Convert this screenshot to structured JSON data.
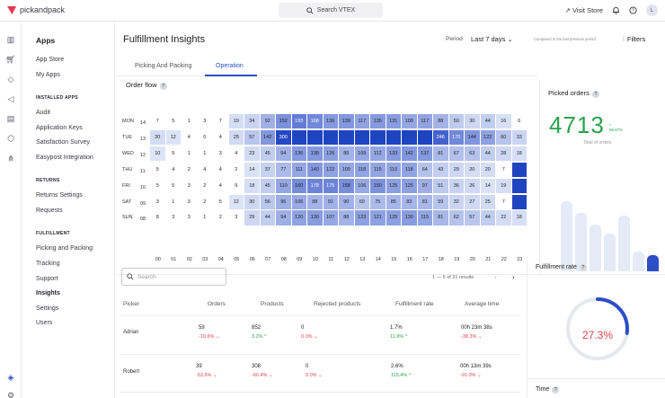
{
  "topbar": {
    "brand": "pickandpack",
    "search_label": "Search VTEX",
    "visit_store": "Visit Store",
    "avatar_initial": "L"
  },
  "sidenav": {
    "title": "Apps",
    "items_top": [
      "App Store",
      "My Apps"
    ],
    "installed_title": "INSTALLED APPS",
    "installed": [
      "Audit",
      "Application Keys",
      "Satisfaction Survey",
      "Easypost Integration"
    ],
    "returns_title": "RETURNS",
    "returns": [
      "Returns Settings",
      "Requests"
    ],
    "fulfillment_title": "FULFILLMENT",
    "fulfillment": [
      "Picking and Packing",
      "Tracking",
      "Support",
      "Insights",
      "Settings",
      "Users"
    ],
    "active_item": "Insights"
  },
  "header": {
    "title": "Fulfillment Insights",
    "period_label": "Period",
    "period_value": "Last 7 days",
    "compared": "Compared to the last previous period",
    "filters": "Filters"
  },
  "tabs": [
    {
      "label": "Picking And Packing",
      "active": false
    },
    {
      "label": "Operation",
      "active": true
    }
  ],
  "order_flow": {
    "title": "Order flow",
    "help": "?",
    "days": [
      {
        "day": "MON",
        "date": "14"
      },
      {
        "day": "TUE",
        "date": "13"
      },
      {
        "day": "WED",
        "date": "12"
      },
      {
        "day": "THU",
        "date": "11"
      },
      {
        "day": "FRI",
        "date": "10"
      },
      {
        "day": "SAT",
        "date": "09"
      },
      {
        "day": "SUN",
        "date": "08"
      }
    ],
    "hours": [
      "00",
      "01",
      "02",
      "03",
      "04",
      "05",
      "06",
      "07",
      "08",
      "09",
      "10",
      "11",
      "12",
      "13",
      "14",
      "15",
      "16",
      "17",
      "18",
      "19",
      "20",
      "21",
      "22",
      "23"
    ],
    "rows": [
      [
        7,
        5,
        1,
        3,
        7,
        19,
        34,
        92,
        152,
        193,
        168,
        136,
        139,
        117,
        135,
        131,
        109,
        117,
        88,
        50,
        30,
        44,
        16,
        6
      ],
      [
        20,
        12,
        4,
        0,
        4,
        25,
        57,
        142,
        300,
        null,
        null,
        null,
        null,
        null,
        null,
        null,
        null,
        null,
        246,
        170,
        144,
        122,
        60,
        33
      ],
      [
        10,
        5,
        1,
        1,
        3,
        4,
        23,
        45,
        94,
        136,
        138,
        126,
        89,
        109,
        112,
        133,
        142,
        137,
        81,
        67,
        63,
        44,
        28,
        18
      ],
      [
        5,
        4,
        2,
        4,
        4,
        2,
        14,
        37,
        77,
        111,
        140,
        122,
        109,
        118,
        115,
        110,
        118,
        64,
        43,
        29,
        20,
        20,
        7,
        null
      ],
      [
        5,
        5,
        3,
        2,
        4,
        9,
        18,
        45,
        110,
        160,
        178,
        175,
        158,
        106,
        150,
        125,
        125,
        97,
        51,
        36,
        26,
        14,
        19,
        null
      ],
      [
        3,
        1,
        3,
        2,
        5,
        12,
        30,
        56,
        96,
        106,
        88,
        91,
        90,
        60,
        75,
        85,
        83,
        81,
        59,
        32,
        27,
        25,
        7,
        null
      ],
      [
        8,
        3,
        3,
        1,
        2,
        3,
        29,
        44,
        94,
        120,
        130,
        107,
        88,
        123,
        121,
        125,
        130,
        115,
        81,
        62,
        57,
        44,
        22,
        18
      ]
    ]
  },
  "picked_orders": {
    "title": "Picked orders",
    "help": "?",
    "value": "4713",
    "delta": "96.67%",
    "caption": "Total of orders",
    "bars": [
      0.78,
      0.65,
      0.52,
      0.42,
      0.62,
      0.22,
      0.18
    ]
  },
  "table": {
    "search_placeholder": "Search",
    "pagination": "1 — 5 of 31 results",
    "columns": [
      "Picker",
      "Orders",
      "Products",
      "Rejected products",
      "Fulfillment rate",
      "Average time"
    ],
    "rows": [
      {
        "picker": "Adrian",
        "orders": "59",
        "orders_delta": "-10.6%",
        "products": "852",
        "products_delta": "3.2%",
        "rejected": "0",
        "rejected_delta": "0.0%",
        "rate": "1.7%",
        "rate_delta": "11.9%",
        "time": "00h 23m 38s",
        "time_delta": "-38.3%"
      },
      {
        "picker": "Robert",
        "orders": "39",
        "orders_delta": "-53.6%",
        "products": "308",
        "products_delta": "-60.4%",
        "rejected": "0",
        "rejected_delta": "0.0%",
        "rate": "2.6%",
        "rate_delta": "115.4%",
        "time": "00h 13m 39s",
        "time_delta": "-91.0%"
      }
    ]
  },
  "fulfillment_rate": {
    "title": "Fulfillment rate",
    "help": "?",
    "value": "27.3%",
    "fraction": 0.273
  },
  "time_card": {
    "title": "Time",
    "help": "?"
  },
  "colors": {
    "accent": "#2d4ec4",
    "positive": "#2aa24d",
    "negative": "#e0434f"
  }
}
